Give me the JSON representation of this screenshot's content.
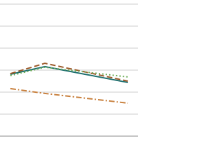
{
  "chart_data": {
    "type": "line",
    "x": [
      1.5,
      6.5,
      18.5
    ],
    "xlim": [
      0,
      20
    ],
    "ylim": [
      0,
      6
    ],
    "yticks": [
      0,
      1,
      2,
      3,
      4,
      5,
      6
    ],
    "grid": true,
    "series": [
      {
        "color": "#1d6f6f",
        "dash": "none",
        "values": [
          2.81,
          3.16,
          2.44
        ]
      },
      {
        "color": "#9c5a2a",
        "dash": "8,4",
        "values": [
          2.84,
          3.31,
          2.5
        ]
      },
      {
        "color": "#6fae5a",
        "dash": "2,3",
        "values": [
          2.75,
          3.13,
          2.69
        ]
      },
      {
        "color": "#c8803e",
        "dash": "8,3,2,3",
        "values": [
          2.16,
          1.94,
          1.5
        ]
      }
    ]
  }
}
